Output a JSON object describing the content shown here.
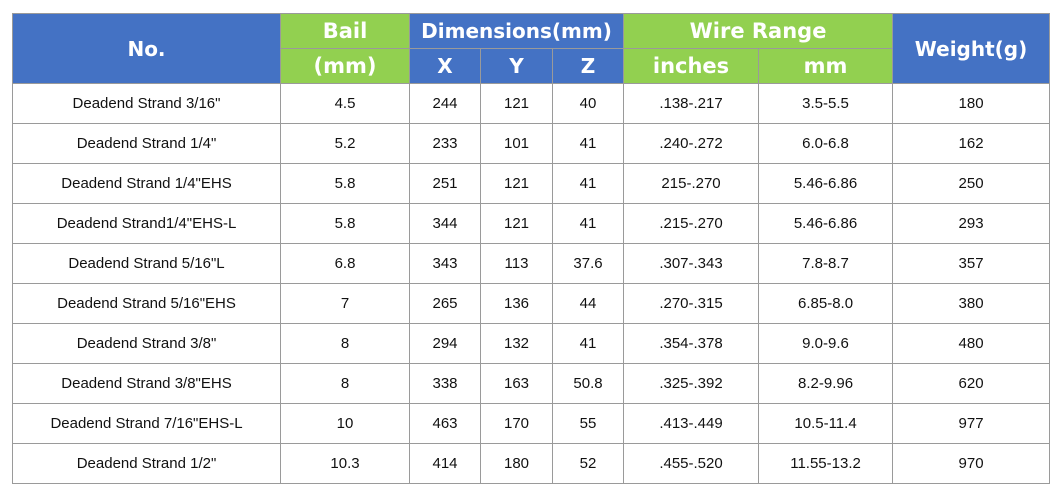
{
  "header": {
    "no": "No.",
    "bail": "Bail",
    "bail_unit": "(mm)",
    "dimensions": "Dimensions(mm)",
    "x": "X",
    "y": "Y",
    "z": "Z",
    "wire_range": "Wire Range",
    "inches": "inches",
    "mm": "mm",
    "weight": "Weight(g)"
  },
  "rows": [
    {
      "no": "Deadend Strand 3/16\"",
      "bail": "4.5",
      "x": "244",
      "y": "121",
      "z": "40",
      "inches": ".138-.217",
      "mm": "3.5-5.5",
      "weight": "180"
    },
    {
      "no": "Deadend Strand 1/4\"",
      "bail": "5.2",
      "x": "233",
      "y": "101",
      "z": "41",
      "inches": ".240-.272",
      "mm": "6.0-6.8",
      "weight": "162"
    },
    {
      "no": "Deadend Strand 1/4\"EHS",
      "bail": "5.8",
      "x": "251",
      "y": "121",
      "z": "41",
      "inches": "215-.270",
      "mm": "5.46-6.86",
      "weight": "250"
    },
    {
      "no": "Deadend Strand1/4\"EHS-L",
      "bail": "5.8",
      "x": "344",
      "y": "121",
      "z": "41",
      "inches": ".215-.270",
      "mm": "5.46-6.86",
      "weight": "293"
    },
    {
      "no": "Deadend Strand 5/16\"L",
      "bail": "6.8",
      "x": "343",
      "y": "113",
      "z": "37.6",
      "inches": ".307-.343",
      "mm": "7.8-8.7",
      "weight": "357"
    },
    {
      "no": "Deadend Strand 5/16\"EHS",
      "bail": "7",
      "x": "265",
      "y": "136",
      "z": "44",
      "inches": ".270-.315",
      "mm": "6.85-8.0",
      "weight": "380"
    },
    {
      "no": "Deadend Strand 3/8\"",
      "bail": "8",
      "x": "294",
      "y": "132",
      "z": "41",
      "inches": ".354-.378",
      "mm": "9.0-9.6",
      "weight": "480"
    },
    {
      "no": "Deadend Strand 3/8\"EHS",
      "bail": "8",
      "x": "338",
      "y": "163",
      "z": "50.8",
      "inches": ".325-.392",
      "mm": "8.2-9.96",
      "weight": "620"
    },
    {
      "no": "Deadend Strand 7/16\"EHS-L",
      "bail": "10",
      "x": "463",
      "y": "170",
      "z": "55",
      "inches": ".413-.449",
      "mm": "10.5-11.4",
      "weight": "977"
    },
    {
      "no": "Deadend Strand 1/2\"",
      "bail": "10.3",
      "x": "414",
      "y": "180",
      "z": "52",
      "inches": ".455-.520",
      "mm": "11.55-13.2",
      "weight": "970"
    }
  ],
  "colors": {
    "header_blue": "#4472c4",
    "header_green": "#92d050",
    "border": "#9a9a9a"
  }
}
